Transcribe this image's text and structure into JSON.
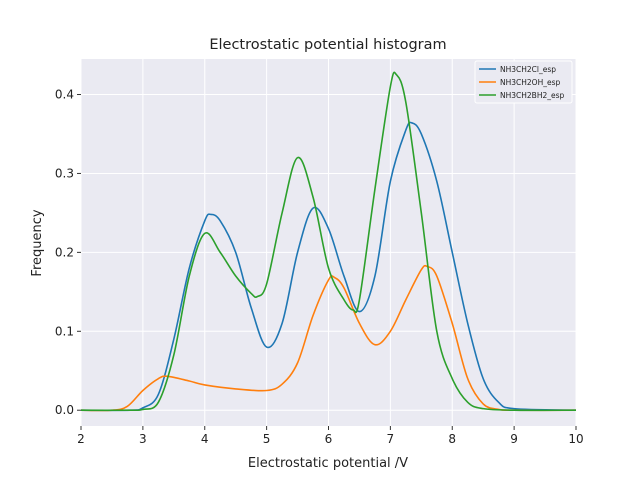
{
  "chart_data": {
    "type": "line",
    "title": "Electrostatic potential histogram",
    "xlabel": "Electrostatic potential /V",
    "ylabel": "Frequency",
    "xlim": [
      2,
      10
    ],
    "ylim": [
      -0.02,
      0.445
    ],
    "xticks": [
      2,
      3,
      4,
      5,
      6,
      7,
      8,
      9,
      10
    ],
    "yticks": [
      0.0,
      0.1,
      0.2,
      0.3,
      0.4
    ],
    "ytick_labels": [
      "0.0",
      "0.1",
      "0.2",
      "0.3",
      "0.4"
    ],
    "grid": true,
    "legend_position": "top-right",
    "background": "#eaeaf2",
    "series": [
      {
        "name": "NH3CH2Cl_esp",
        "color": "#1f77b4",
        "x": [
          2,
          2.8,
          3.0,
          3.25,
          3.5,
          3.75,
          4.0,
          4.1,
          4.25,
          4.5,
          4.75,
          5.0,
          5.25,
          5.5,
          5.75,
          6.0,
          6.25,
          6.5,
          6.75,
          7.0,
          7.25,
          7.35,
          7.5,
          7.75,
          8.0,
          8.25,
          8.5,
          8.75,
          9.0,
          10
        ],
        "y": [
          0,
          0,
          0.003,
          0.02,
          0.09,
          0.18,
          0.24,
          0.248,
          0.24,
          0.2,
          0.13,
          0.08,
          0.11,
          0.2,
          0.256,
          0.23,
          0.17,
          0.125,
          0.17,
          0.29,
          0.355,
          0.364,
          0.35,
          0.29,
          0.2,
          0.11,
          0.04,
          0.01,
          0.002,
          0
        ]
      },
      {
        "name": "NH3CH2OH_esp",
        "color": "#ff7f0e",
        "x": [
          2,
          2.5,
          2.75,
          3.0,
          3.25,
          3.4,
          3.75,
          4.0,
          4.5,
          5.0,
          5.25,
          5.5,
          5.75,
          6.0,
          6.1,
          6.25,
          6.5,
          6.75,
          7.0,
          7.25,
          7.5,
          7.6,
          7.75,
          8.0,
          8.25,
          8.5,
          8.75,
          9.0,
          10
        ],
        "y": [
          0,
          0,
          0.005,
          0.025,
          0.04,
          0.043,
          0.037,
          0.032,
          0.027,
          0.025,
          0.033,
          0.06,
          0.12,
          0.165,
          0.168,
          0.155,
          0.11,
          0.083,
          0.1,
          0.14,
          0.178,
          0.182,
          0.17,
          0.11,
          0.04,
          0.008,
          0.001,
          0,
          0
        ]
      },
      {
        "name": "NH3CH2BH2_esp",
        "color": "#2ca02c",
        "x": [
          2,
          2.8,
          3.0,
          3.25,
          3.5,
          3.75,
          4.0,
          4.25,
          4.5,
          4.75,
          4.85,
          5.0,
          5.25,
          5.5,
          5.75,
          6.0,
          6.25,
          6.4,
          6.5,
          6.75,
          7.0,
          7.1,
          7.25,
          7.5,
          7.75,
          8.0,
          8.25,
          8.5,
          9.0,
          10
        ],
        "y": [
          0,
          0,
          0.001,
          0.01,
          0.07,
          0.17,
          0.224,
          0.2,
          0.17,
          0.148,
          0.144,
          0.16,
          0.25,
          0.32,
          0.27,
          0.18,
          0.14,
          0.127,
          0.14,
          0.28,
          0.41,
          0.425,
          0.39,
          0.25,
          0.1,
          0.04,
          0.01,
          0.002,
          0,
          0
        ]
      }
    ]
  }
}
